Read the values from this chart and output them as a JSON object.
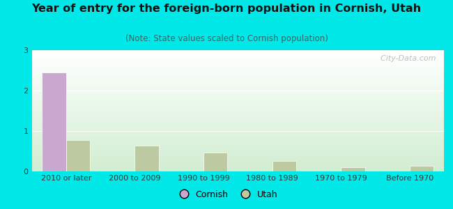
{
  "title": "Year of entry for the foreign-born population in Cornish, Utah",
  "subtitle": "(Note: State values scaled to Cornish population)",
  "categories": [
    "2010 or later",
    "2000 to 2009",
    "1990 to 1999",
    "1980 to 1989",
    "1970 to 1979",
    "Before 1970"
  ],
  "cornish_values": [
    2.45,
    0,
    0,
    0,
    0,
    0
  ],
  "utah_values": [
    0.78,
    0.63,
    0.47,
    0.26,
    0.11,
    0.13
  ],
  "cornish_color": "#c9a8d0",
  "utah_color": "#bdc9a0",
  "background_color": "#00e8e8",
  "ylim": [
    0,
    3
  ],
  "yticks": [
    0,
    1,
    2,
    3
  ],
  "bar_width": 0.35,
  "watermark": "  City-Data.com",
  "title_fontsize": 11.5,
  "subtitle_fontsize": 8.5,
  "tick_fontsize": 8,
  "legend_fontsize": 9
}
